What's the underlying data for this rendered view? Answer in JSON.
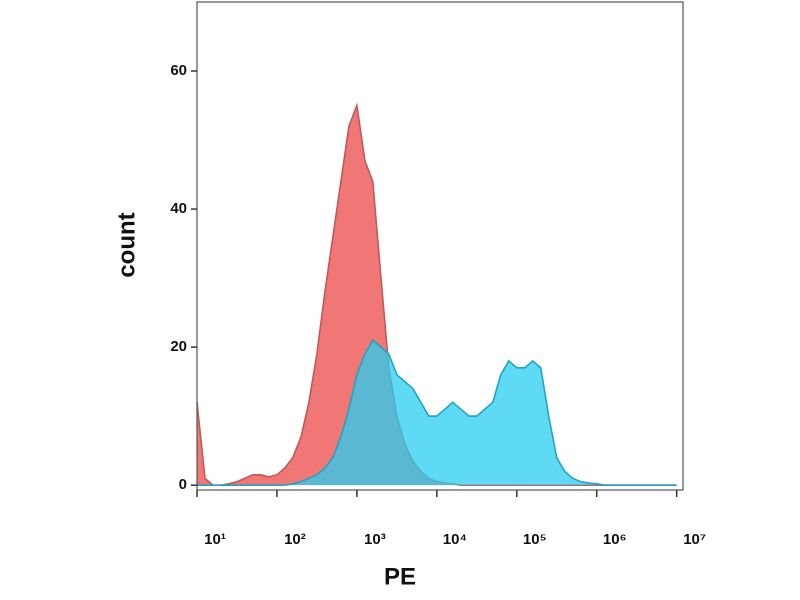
{
  "chart_data": {
    "type": "area",
    "xlabel": "PE",
    "ylabel": "count",
    "xscale": "log",
    "x": [
      10,
      12.6,
      15.8,
      20,
      25.1,
      31.6,
      39.8,
      50.1,
      63.1,
      79.4,
      100,
      126,
      158,
      200,
      251,
      316,
      398,
      501,
      631,
      794,
      1000,
      1260,
      1580,
      2000,
      2510,
      3160,
      3980,
      5010,
      6310,
      7940,
      10000,
      12600,
      15800,
      20000,
      25100,
      31600,
      39800,
      50100,
      63100,
      79400,
      100000,
      126000,
      158000,
      200000,
      251000,
      316000,
      398000,
      501000,
      631000,
      794000,
      1000000,
      1260000,
      1580000,
      2000000,
      2510000,
      3160000,
      3980000,
      5010000,
      6310000,
      7940000,
      10000000
    ],
    "series": [
      {
        "color": "#f07070",
        "values": [
          12,
          1,
          0,
          0,
          0.2,
          0.5,
          1,
          1.5,
          1.5,
          1.2,
          1.5,
          2.5,
          4,
          7,
          12,
          19,
          28,
          36,
          44,
          52,
          55,
          47,
          44,
          30,
          17,
          10,
          6,
          3.5,
          2,
          1,
          0.5,
          0.3,
          0.2,
          0,
          0,
          0,
          0,
          0,
          0,
          0,
          0,
          0,
          0,
          0,
          0,
          0,
          0,
          0,
          0,
          0,
          0,
          0,
          0,
          0,
          0,
          0,
          0,
          0,
          0,
          0,
          0
        ]
      },
      {
        "color": "#28cdf0",
        "values": [
          0,
          0,
          0,
          0,
          0,
          0,
          0,
          0,
          0,
          0,
          0,
          0,
          0.2,
          0.5,
          1,
          1.5,
          2.5,
          4,
          7,
          11,
          16,
          19,
          21,
          20,
          19,
          16,
          15,
          14,
          12,
          10,
          10,
          11,
          12,
          11,
          10,
          10,
          11,
          12,
          16,
          18,
          17,
          17,
          18,
          17,
          10,
          4,
          2,
          1,
          0.5,
          0.3,
          0.2,
          0,
          0,
          0,
          0,
          0,
          0,
          0,
          0,
          0,
          0
        ]
      }
    ],
    "xlim": [
      10,
      12000000
    ],
    "ylim": [
      -0.7,
      70
    ],
    "xticks": [
      {
        "value": 10,
        "label": "10¹"
      },
      {
        "value": 100,
        "label": "10²"
      },
      {
        "value": 1000,
        "label": "10³"
      },
      {
        "value": 10000,
        "label": "10⁴"
      },
      {
        "value": 100000,
        "label": "10⁵"
      },
      {
        "value": 1000000,
        "label": "10⁶"
      },
      {
        "value": 10000000,
        "label": "10⁷"
      }
    ],
    "yticks": [
      0,
      20,
      40,
      60
    ]
  }
}
